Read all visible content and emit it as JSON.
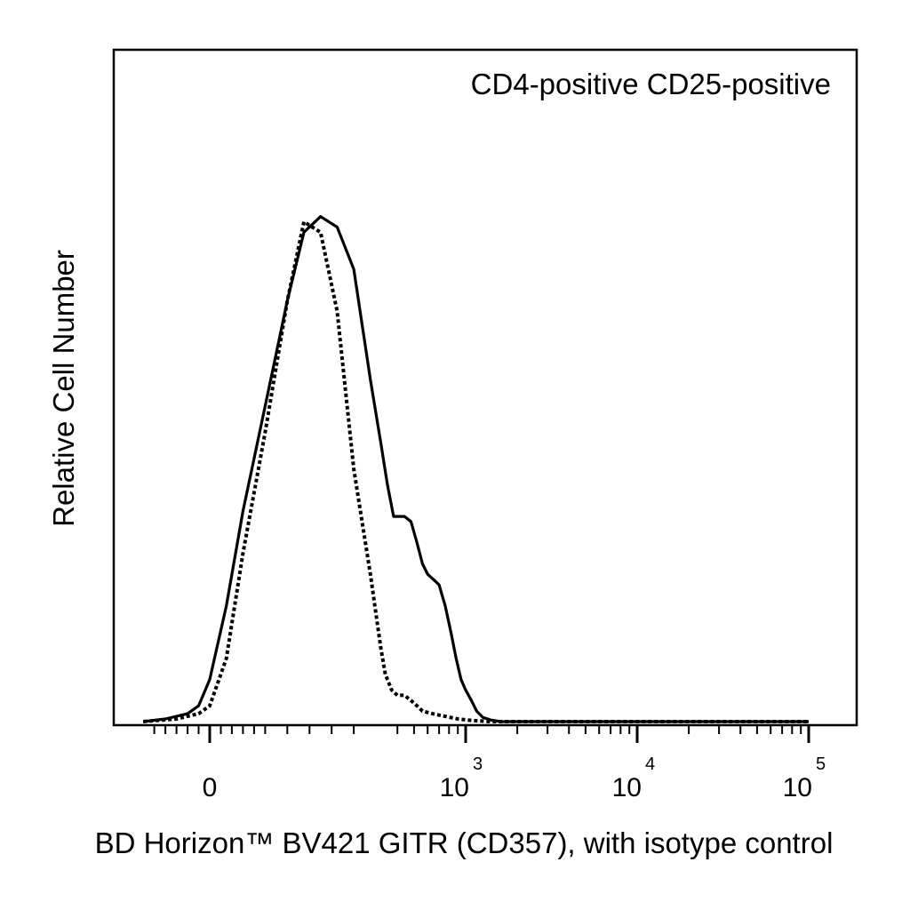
{
  "chart_data": {
    "type": "line",
    "annotation": "CD4-positive CD25-positive",
    "xlabel": "BD Horizon™ BV421 GITR (CD357), with isotype control",
    "ylabel": "Relative Cell Number",
    "x_scale": "biexponential",
    "x_ticks": [
      {
        "label": "0",
        "base": "",
        "exp": ""
      },
      {
        "label": "10",
        "base": "10",
        "exp": "3"
      },
      {
        "label": "10",
        "base": "10",
        "exp": "4"
      },
      {
        "label": "10",
        "base": "10",
        "exp": "5"
      }
    ],
    "grid": false,
    "legend": "none",
    "series": [
      {
        "style": "solid",
        "color": "#000000",
        "x": [
          -120,
          -80,
          -40,
          -20,
          0,
          30,
          60,
          100,
          140,
          170,
          200,
          230,
          260,
          290,
          320,
          350,
          380,
          410,
          440,
          480,
          520,
          560,
          600,
          650,
          700,
          760,
          820,
          880,
          940,
          1000,
          1080,
          1160,
          1260,
          1400,
          1600,
          2000,
          5000,
          100000
        ],
        "y": [
          0,
          0.5,
          1.5,
          3,
          8,
          22,
          40,
          60,
          80,
          93,
          96,
          94,
          86,
          65,
          53,
          45,
          39,
          39,
          39,
          38,
          34,
          30,
          28,
          27,
          26,
          22,
          17,
          12,
          8,
          6,
          4,
          2,
          0.8,
          0.3,
          0,
          0,
          0,
          0
        ]
      },
      {
        "style": "dotted",
        "color": "#000000",
        "x": [
          -120,
          -60,
          -20,
          0,
          30,
          60,
          100,
          140,
          170,
          200,
          230,
          260,
          290,
          320,
          340,
          370,
          400,
          440,
          480,
          520,
          560,
          640,
          760,
          900,
          1100,
          1400,
          2000,
          100000
        ],
        "y": [
          0,
          0.5,
          1.5,
          3,
          12,
          32,
          55,
          80,
          95,
          93,
          78,
          48,
          28,
          14,
          9,
          6,
          5,
          5,
          4,
          3,
          2,
          1.5,
          1,
          0.5,
          0.2,
          0,
          0,
          0
        ]
      }
    ]
  }
}
